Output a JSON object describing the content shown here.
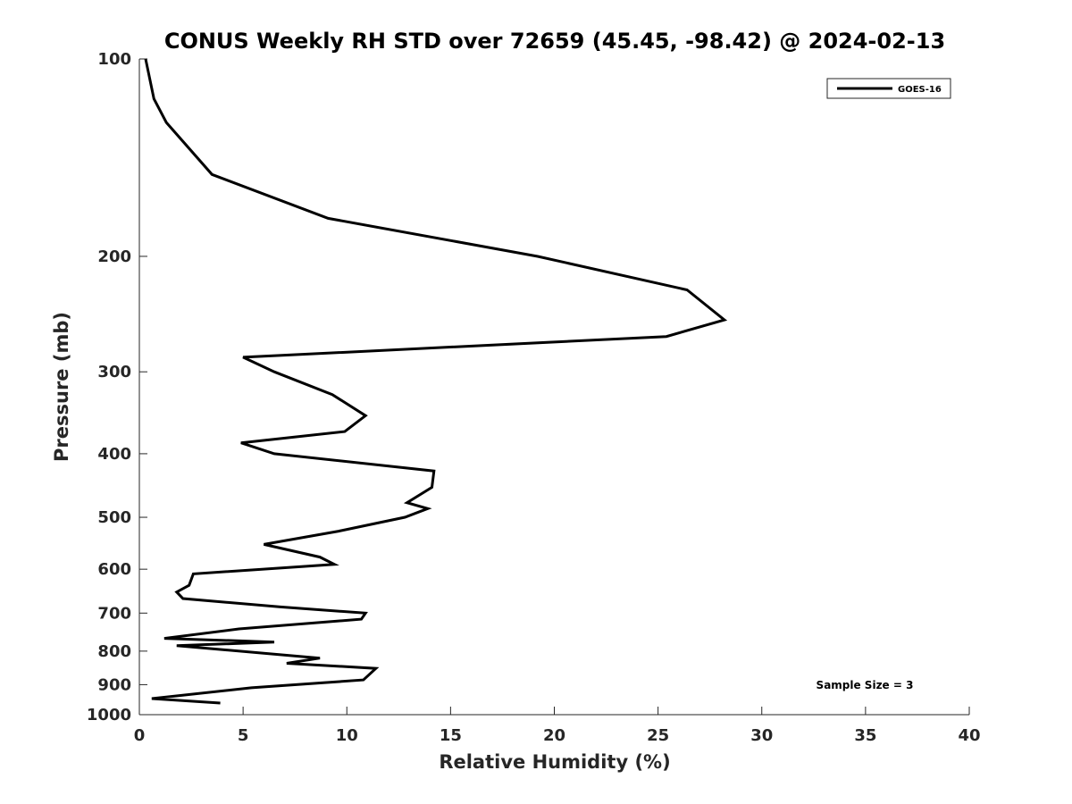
{
  "chart_data": {
    "type": "line",
    "title": "CONUS Weekly RH STD over 72659 (45.45, -98.42) @ 2024-02-13",
    "xlabel": "Relative Humidity (%)",
    "ylabel": "Pressure (mb)",
    "xlim": [
      0,
      40
    ],
    "ylim": [
      100,
      1000
    ],
    "y_scale": "log",
    "y_reversed": true,
    "x_ticks": [
      0,
      5,
      10,
      15,
      20,
      25,
      30,
      35,
      40
    ],
    "y_ticks": [
      100,
      200,
      300,
      400,
      500,
      600,
      700,
      800,
      900,
      1000
    ],
    "grid": false,
    "legend_position": "top-right",
    "annotation": "Sample Size = 3",
    "series": [
      {
        "name": "GOES-16",
        "color": "#000000",
        "x": [
          0.3,
          0.7,
          1.3,
          3.5,
          9.1,
          19.2,
          26.4,
          28.2,
          25.4,
          5.0,
          6.5,
          9.3,
          10.9,
          9.9,
          4.9,
          6.5,
          14.2,
          14.1,
          12.9,
          13.9,
          12.8,
          9.6,
          6.0,
          8.7,
          9.4,
          2.6,
          2.4,
          1.8,
          2.1,
          6.8,
          10.9,
          10.7,
          4.8,
          1.2,
          6.5,
          1.8,
          8.7,
          7.1,
          11.4,
          10.8,
          5.4,
          0.6,
          3.9
        ],
        "y": [
          100,
          115,
          125,
          150,
          175,
          200,
          225,
          250,
          265,
          285,
          300,
          325,
          350,
          370,
          385,
          400,
          425,
          450,
          475,
          485,
          500,
          525,
          550,
          575,
          590,
          610,
          635,
          650,
          665,
          685,
          700,
          715,
          740,
          765,
          775,
          785,
          820,
          835,
          850,
          885,
          910,
          945,
          960
        ]
      }
    ]
  }
}
